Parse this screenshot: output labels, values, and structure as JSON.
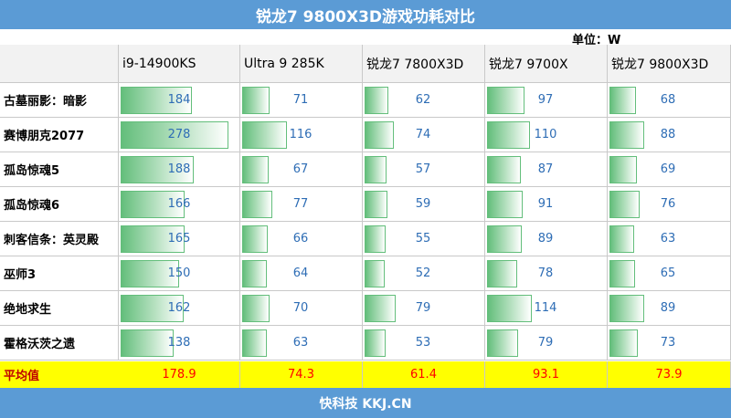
{
  "title": "锐龙7 9800X3D游戏功耗对比",
  "unit": "单位：W",
  "footer": "快科技 KKJ.CN",
  "colors": {
    "header_bg": "#5b9bd5",
    "bar_fill": "#63be7b",
    "value_text": "#2e6db5",
    "avg_bg": "#ffff00",
    "avg_text": "#ff0000"
  },
  "chart_data": {
    "type": "table",
    "title": "锐龙7 9800X3D游戏功耗对比",
    "unit": "单位：W",
    "columns": [
      "i9-14900KS",
      "Ultra 9 285K",
      "锐龙7 7800X3D",
      "锐龙7 9700X",
      "锐龙7 9800X3D"
    ],
    "rows": [
      {
        "game": "古墓丽影：暗影",
        "values": [
          184,
          71,
          62,
          97,
          68
        ]
      },
      {
        "game": "赛博朋克2077",
        "values": [
          278,
          116,
          74,
          110,
          88
        ]
      },
      {
        "game": "孤岛惊魂5",
        "values": [
          188,
          67,
          57,
          87,
          69
        ]
      },
      {
        "game": "孤岛惊魂6",
        "values": [
          166,
          77,
          59,
          91,
          76
        ]
      },
      {
        "game": "刺客信条：英灵殿",
        "values": [
          165,
          66,
          55,
          89,
          63
        ]
      },
      {
        "game": "巫师3",
        "values": [
          150,
          64,
          52,
          78,
          65
        ]
      },
      {
        "game": "绝地求生",
        "values": [
          162,
          70,
          79,
          114,
          89
        ]
      },
      {
        "game": "霍格沃茨之遗",
        "values": [
          138,
          63,
          53,
          79,
          73
        ]
      }
    ],
    "average": {
      "label": "平均值",
      "values": [
        "178.9",
        "74.3",
        "61.4",
        "93.1",
        "73.9"
      ]
    }
  }
}
